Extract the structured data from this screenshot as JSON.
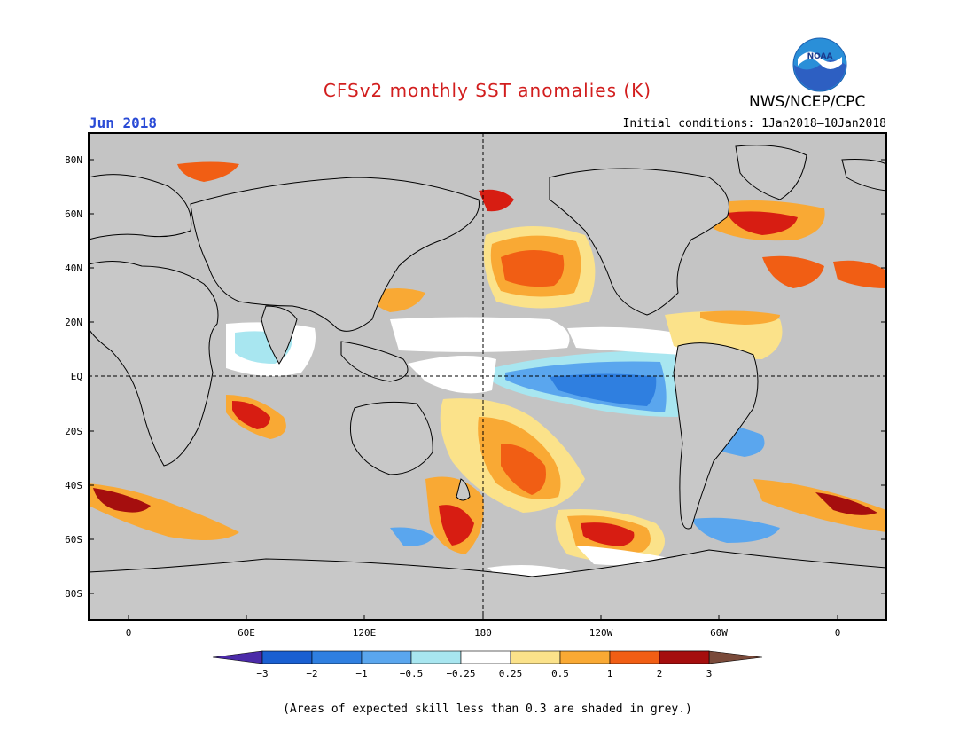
{
  "header": {
    "title": "CFSv2 monthly SST anomalies (K)",
    "month": "Jun 2018",
    "initial_conditions": "Initial conditions: 1Jan2018–10Jan2018",
    "agency": "NWS/NCEP/CPC",
    "logo_text": "NOAA"
  },
  "map": {
    "lat_ticks": [
      "80N",
      "60N",
      "40N",
      "20N",
      "EQ",
      "20S",
      "40S",
      "60S",
      "80S"
    ],
    "lon_ticks": [
      "0",
      "60E",
      "120E",
      "180",
      "120W",
      "60W",
      "0"
    ],
    "land_color": "#c8c8c8",
    "ocean_grey_color": "#c4c4c4"
  },
  "colorbar": {
    "labels": [
      "−3",
      "−2",
      "−1",
      "−0.5",
      "−0.25",
      "0.25",
      "0.5",
      "1",
      "2",
      "3"
    ],
    "colors": [
      "#4b2aa8",
      "#1a5fd1",
      "#2f7fe0",
      "#5aa6ee",
      "#a8e6f0",
      "#ffffff",
      "#fbe28a",
      "#f9a934",
      "#f15e14",
      "#d71d12",
      "#a50e0e",
      "#7a4a3a"
    ]
  },
  "footer": {
    "note": "(Areas of expected skill less than 0.3 are shaded in grey.)"
  }
}
